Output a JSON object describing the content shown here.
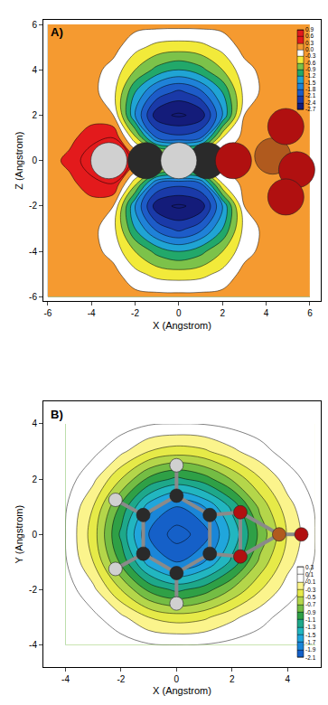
{
  "chart_data": [
    {
      "type": "contour",
      "title": "A)",
      "x_label": "X (Angstrom)",
      "y_label": "Z (Angstrom)",
      "xlim": [
        -6.2,
        6.5
      ],
      "ylim": [
        -6.2,
        6.2
      ],
      "xticks": [
        -6,
        -4,
        -2,
        0,
        2,
        4,
        6
      ],
      "yticks": [
        -6,
        -4,
        -2,
        0,
        2,
        4,
        6
      ],
      "grid": false,
      "x": [
        -6,
        -5,
        -4,
        -3,
        -2,
        -1,
        0,
        1,
        2,
        3,
        4,
        5,
        6
      ],
      "y": [
        -6,
        -5,
        -4,
        -3,
        -2,
        -1,
        0,
        1,
        2,
        3,
        4,
        5,
        6
      ],
      "z": [
        [
          0.1,
          0.1,
          0.1,
          0.1,
          0.1,
          0.1,
          0.1,
          0.1,
          0.1,
          0.1,
          0.1,
          0.1,
          0.1
        ],
        [
          0.1,
          0.1,
          0.1,
          0.1,
          -0.2,
          -0.4,
          -0.45,
          -0.4,
          -0.2,
          0.1,
          0.1,
          0.1,
          0.1
        ],
        [
          0.1,
          0.1,
          0.1,
          -0.1,
          -0.6,
          -1.0,
          -1.2,
          -1.0,
          -0.6,
          -0.1,
          0.1,
          0.1,
          0.1
        ],
        [
          0.1,
          0.1,
          0.1,
          -0.2,
          -1.2,
          -1.9,
          -2.2,
          -1.9,
          -1.2,
          -0.2,
          0.1,
          0.1,
          0.1
        ],
        [
          0.1,
          0.1,
          0.15,
          0.0,
          -1.5,
          -2.6,
          -2.75,
          -2.6,
          -1.5,
          0.0,
          0.1,
          0.1,
          0.1
        ],
        [
          0.1,
          0.2,
          0.5,
          0.6,
          -0.5,
          -1.8,
          -2.0,
          -1.8,
          -0.3,
          0.1,
          0.1,
          0.1,
          0.1
        ],
        [
          0.15,
          0.4,
          0.8,
          0.95,
          0.5,
          0.3,
          0.2,
          0.3,
          0.2,
          0.1,
          0.1,
          0.1,
          0.1
        ],
        [
          0.1,
          0.2,
          0.5,
          0.6,
          -0.5,
          -1.8,
          -2.0,
          -1.8,
          -0.3,
          0.1,
          0.1,
          0.1,
          0.1
        ],
        [
          0.1,
          0.1,
          0.15,
          0.0,
          -1.5,
          -2.6,
          -2.75,
          -2.6,
          -1.5,
          0.0,
          0.1,
          0.1,
          0.1
        ],
        [
          0.1,
          0.1,
          0.1,
          -0.2,
          -1.2,
          -1.9,
          -2.2,
          -1.9,
          -1.2,
          -0.2,
          0.1,
          0.1,
          0.1
        ],
        [
          0.1,
          0.1,
          0.1,
          -0.1,
          -0.6,
          -1.0,
          -1.2,
          -1.0,
          -0.6,
          -0.1,
          0.1,
          0.1,
          0.1
        ],
        [
          0.1,
          0.1,
          0.1,
          0.1,
          -0.2,
          -0.4,
          -0.45,
          -0.4,
          -0.2,
          0.1,
          0.1,
          0.1,
          0.1
        ],
        [
          0.1,
          0.1,
          0.1,
          0.1,
          0.1,
          0.1,
          0.1,
          0.1,
          0.1,
          0.1,
          0.1,
          0.1,
          0.1
        ]
      ],
      "colorbar_range": [
        -2.7,
        0.9
      ],
      "colorbar_ticks": [
        0.9,
        0.6,
        0.3,
        {
          "value": 0,
          "label": "0.0"
        },
        -0.3,
        -0.6,
        -0.9,
        -1.2,
        -1.5,
        -1.8,
        -2.1,
        -2.4,
        -2.7
      ],
      "colors": [
        "#141c7a",
        "#1a3aa8",
        "#1d5cc8",
        "#1f82d8",
        "#20a4d4",
        "#1fb0a8",
        "#22a86a",
        "#7cc24a",
        "#f2ea3a",
        "#ffffff",
        "#f59a30",
        "#e31a1c"
      ],
      "series": [
        {
          "color": "#2a2a2a",
          "x": [
            -1.5,
            1.3
          ],
          "y": [
            0,
            0
          ]
        },
        {
          "color": "#d0d0d0",
          "x": [
            -3.2,
            0
          ],
          "y": [
            0,
            0
          ]
        },
        {
          "color": "#b05a1e",
          "x": [
            4.3
          ],
          "y": [
            0.2
          ]
        },
        {
          "color": "#b01010",
          "x": [
            2.5,
            4.9,
            5.4,
            4.9
          ],
          "y": [
            0,
            1.5,
            -0.4,
            -1.6
          ]
        }
      ]
    },
    {
      "type": "contour",
      "title": "B)",
      "x_label": "X (Angstrom)",
      "y_label": "Y (Angstrom)",
      "xlim": [
        -4.8,
        5.2
      ],
      "ylim": [
        -4.8,
        4.8
      ],
      "xticks": [
        -4,
        -2,
        0,
        2,
        4
      ],
      "yticks": [
        -4,
        -2,
        0,
        2,
        4
      ],
      "grid": false,
      "x": [
        -4,
        -3,
        -2,
        -1,
        0,
        1,
        2,
        3,
        4,
        5
      ],
      "y": [
        -4,
        -3,
        -2,
        -1,
        0,
        1,
        2,
        3,
        4
      ],
      "z": [
        [
          0.2,
          0.2,
          0.2,
          0.12,
          0.1,
          0.11,
          0.16,
          0.2,
          0.2,
          0.2
        ],
        [
          0.2,
          0.15,
          -0.05,
          -0.3,
          -0.4,
          -0.34,
          -0.15,
          0.03,
          0.18,
          0.2
        ],
        [
          0.2,
          -0.05,
          -0.5,
          -0.95,
          -1.15,
          -1.0,
          -0.68,
          -0.32,
          0.0,
          0.2
        ],
        [
          0.12,
          -0.3,
          -0.95,
          -1.6,
          -1.9,
          -1.7,
          -1.25,
          -0.65,
          -0.18,
          0.12
        ],
        [
          0.1,
          -0.4,
          -1.15,
          -1.9,
          -2.2,
          -2.0,
          -1.45,
          -0.85,
          -0.28,
          0.1
        ],
        [
          0.12,
          -0.3,
          -0.95,
          -1.6,
          -1.9,
          -1.7,
          -1.25,
          -0.65,
          -0.18,
          0.12
        ],
        [
          0.2,
          -0.05,
          -0.5,
          -0.95,
          -1.15,
          -1.0,
          -0.68,
          -0.32,
          0.0,
          0.2
        ],
        [
          0.2,
          0.15,
          -0.05,
          -0.3,
          -0.4,
          -0.34,
          -0.15,
          0.03,
          0.18,
          0.2
        ],
        [
          0.2,
          0.2,
          0.2,
          0.12,
          0.1,
          0.11,
          0.16,
          0.2,
          0.2,
          0.2
        ]
      ],
      "colorbar_range": [
        -2.1,
        0.3
      ],
      "colorbar_ticks": [
        0.3,
        0.1,
        -0.1,
        -0.3,
        -0.5,
        -0.7,
        -0.9,
        -1.1,
        -1.3,
        -1.5,
        -1.7,
        -1.9,
        -2.1
      ],
      "colors": [
        "#1560c8",
        "#1a86d8",
        "#20a6dc",
        "#22b6c0",
        "#1ea88a",
        "#129a55",
        "#2fa046",
        "#74bd44",
        "#b4d64a",
        "#e6ea48",
        "#fbf48c",
        "#ffffff"
      ],
      "series": [
        {
          "color": "#2a2a2a",
          "x": [
            1.2,
            0,
            -1.2,
            -1.2,
            0,
            1.2
          ],
          "y": [
            0.7,
            1.4,
            0.7,
            -0.7,
            -1.4,
            -0.7
          ]
        },
        {
          "color": "#d0d0d0",
          "x": [
            0,
            -2.2,
            -2.2,
            0
          ],
          "y": [
            2.5,
            1.25,
            -1.25,
            -2.5
          ]
        },
        {
          "color": "#b05a1e",
          "x": [
            3.7
          ],
          "y": [
            0
          ]
        },
        {
          "color": "#b01010",
          "x": [
            2.3,
            2.3,
            4.5
          ],
          "y": [
            0.8,
            -0.8,
            0
          ]
        }
      ]
    }
  ]
}
